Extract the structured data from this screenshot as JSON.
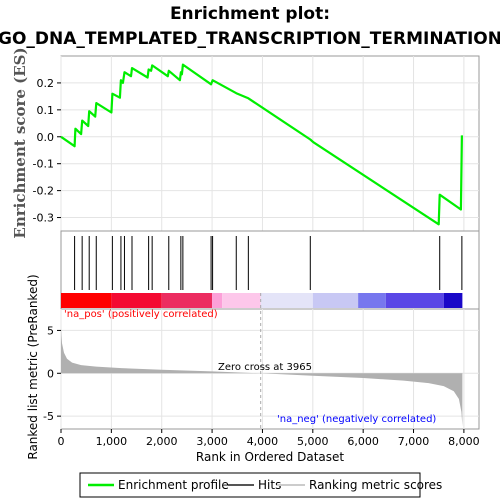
{
  "title_line1": "Enrichment plot:",
  "title_line2": "GO_DNA_TEMPLATED_TRANSCRIPTION_TERMINATION",
  "colors": {
    "es_line": "#00ee00",
    "hit_line": "#000000",
    "metric_fill": "#b0b0b0",
    "pos_label": "#ff0000",
    "neg_label": "#0000ff",
    "zero_cross_line": "#aaaaaa"
  },
  "chart_data": [
    {
      "type": "line",
      "name": "enrichment-profile",
      "ylabel": "Enrichment score (ES)",
      "xlim": [
        0,
        8300
      ],
      "ylim": [
        -0.35,
        0.3
      ],
      "y_ticks": [
        "0.2",
        "0.1",
        "0.0",
        "-0.1",
        "-0.2",
        "-0.3"
      ],
      "y_tick_values": [
        0.2,
        0.1,
        0.0,
        -0.1,
        -0.2,
        -0.3
      ],
      "grid": true,
      "points": [
        [
          0,
          0.0
        ],
        [
          270,
          -0.035
        ],
        [
          285,
          0.03
        ],
        [
          400,
          0.01
        ],
        [
          420,
          0.06
        ],
        [
          540,
          0.04
        ],
        [
          560,
          0.095
        ],
        [
          680,
          0.075
        ],
        [
          700,
          0.125
        ],
        [
          1000,
          0.09
        ],
        [
          1020,
          0.16
        ],
        [
          1170,
          0.145
        ],
        [
          1190,
          0.21
        ],
        [
          1230,
          0.2
        ],
        [
          1260,
          0.24
        ],
        [
          1390,
          0.225
        ],
        [
          1410,
          0.255
        ],
        [
          1720,
          0.22
        ],
        [
          1740,
          0.25
        ],
        [
          1790,
          0.245
        ],
        [
          1810,
          0.265
        ],
        [
          2120,
          0.225
        ],
        [
          2140,
          0.245
        ],
        [
          2360,
          0.21
        ],
        [
          2380,
          0.24
        ],
        [
          2400,
          0.232
        ],
        [
          2420,
          0.268
        ],
        [
          2980,
          0.195
        ],
        [
          3010,
          0.21
        ],
        [
          3480,
          0.162
        ],
        [
          3720,
          0.143
        ],
        [
          4950,
          -0.01
        ],
        [
          5010,
          -0.02
        ],
        [
          7500,
          -0.325
        ],
        [
          7520,
          -0.215
        ],
        [
          7940,
          -0.27
        ],
        [
          7960,
          0.005
        ]
      ]
    },
    {
      "type": "scatter",
      "name": "hits",
      "x": [
        270,
        420,
        560,
        700,
        1020,
        1190,
        1260,
        1410,
        1740,
        1810,
        2140,
        2380,
        2420,
        2980,
        3010,
        3480,
        3720,
        4950,
        7520,
        7960
      ]
    },
    {
      "type": "area",
      "name": "ranked-list-metric",
      "xlabel": "Rank in Ordered Dataset",
      "ylabel": "Ranked list metric (PreRanked)",
      "xlim": [
        0,
        8300
      ],
      "ylim": [
        -6.5,
        7.5
      ],
      "y_ticks": [
        "5",
        "0",
        "-5"
      ],
      "y_tick_values": [
        5,
        0,
        -5
      ],
      "x_ticks": [
        "0",
        "1,000",
        "2,000",
        "3,000",
        "4,000",
        "5,000",
        "6,000",
        "7,000",
        "8,000"
      ],
      "x_tick_values": [
        0,
        1000,
        2000,
        3000,
        4000,
        5000,
        6000,
        7000,
        8000
      ],
      "zero_cross": 3965,
      "points": [
        [
          0,
          5.2
        ],
        [
          20,
          3.5
        ],
        [
          60,
          2.4
        ],
        [
          120,
          1.7
        ],
        [
          220,
          1.25
        ],
        [
          400,
          0.95
        ],
        [
          700,
          0.78
        ],
        [
          1200,
          0.6
        ],
        [
          2000,
          0.42
        ],
        [
          3000,
          0.22
        ],
        [
          3965,
          0.0
        ],
        [
          5000,
          -0.28
        ],
        [
          6000,
          -0.55
        ],
        [
          6800,
          -0.85
        ],
        [
          7300,
          -1.15
        ],
        [
          7600,
          -1.5
        ],
        [
          7800,
          -2.1
        ],
        [
          7900,
          -3.0
        ],
        [
          7950,
          -4.5
        ],
        [
          7970,
          -6.2
        ]
      ]
    }
  ],
  "annotations": {
    "zero_cross": "Zero cross at 3965",
    "pos_label": "'na_pos' (positively correlated)",
    "neg_label": "'na_neg' (negatively correlated)"
  },
  "legend": {
    "items": [
      {
        "label": "Enrichment profile",
        "color": "#00ee00",
        "kind": "line"
      },
      {
        "label": "Hits",
        "color": "#555555",
        "kind": "line"
      },
      {
        "label": "Ranking metric scores",
        "color": "#cccccc",
        "kind": "line"
      }
    ]
  }
}
